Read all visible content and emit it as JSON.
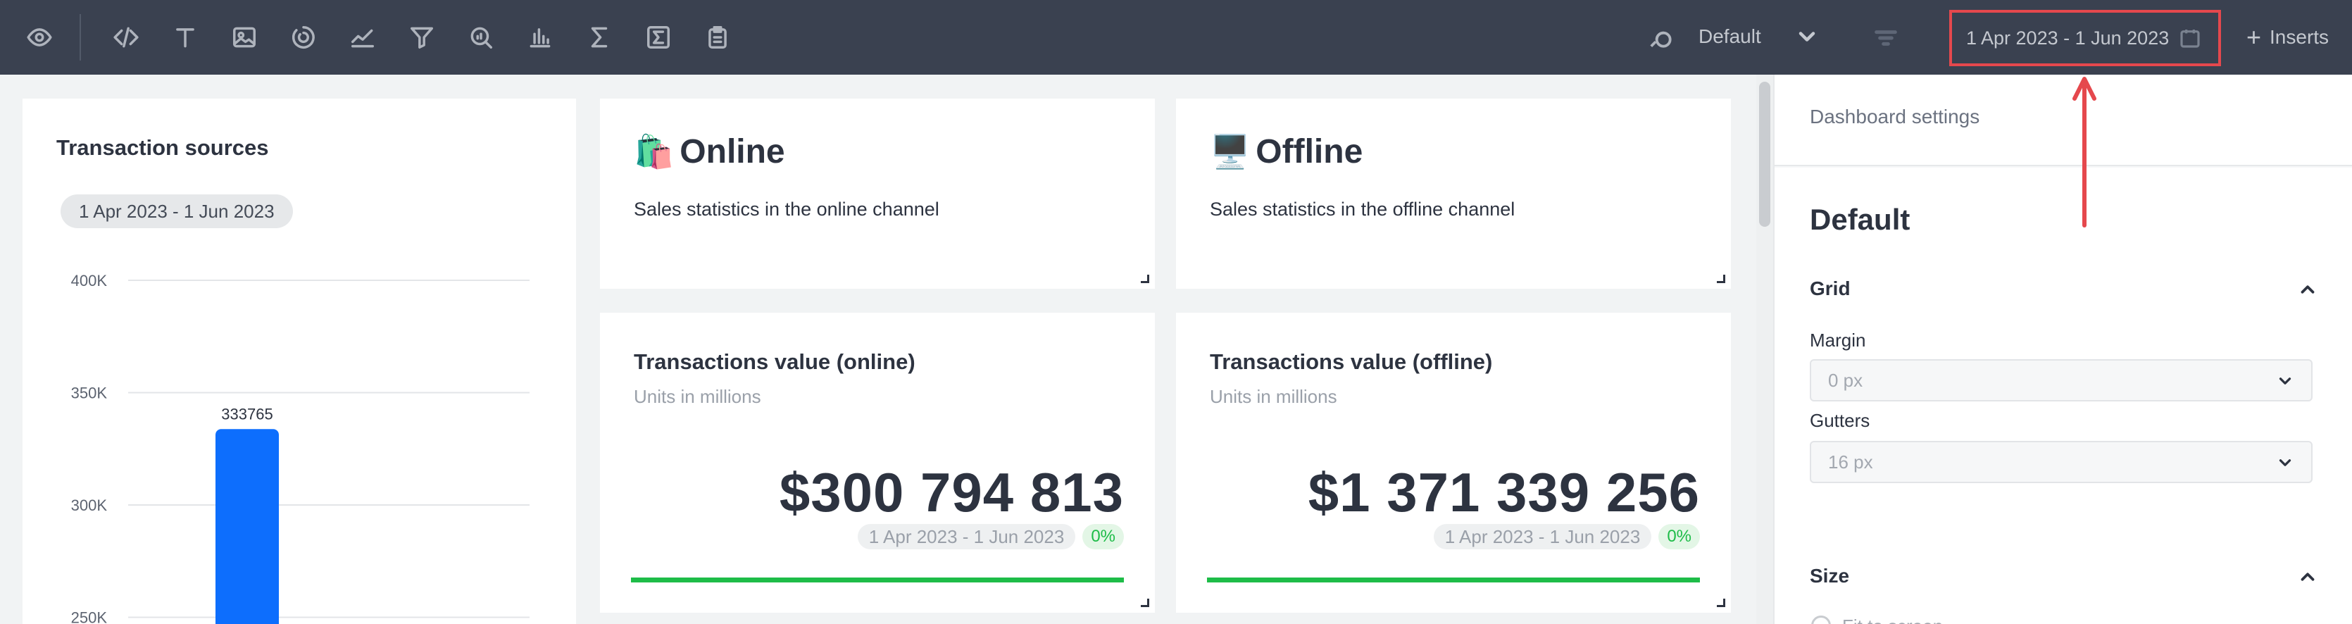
{
  "toolbar": {
    "icons": [
      "eye-icon",
      "code-icon",
      "text-icon",
      "image-icon",
      "gauge-icon",
      "line-chart-icon",
      "funnel-icon",
      "search-chart-icon",
      "bar-chart-icon",
      "sum-icon",
      "sum-box-icon",
      "clipboard-icon"
    ],
    "theme_label": "Default",
    "date_range": "1 Apr 2023 - 1 Jun 2023",
    "inserts_label": "Inserts"
  },
  "cards": {
    "transaction_sources": {
      "title": "Transaction sources",
      "date_pill": "1 Apr 2023 - 1 Jun 2023"
    },
    "online": {
      "emoji": "🛍️",
      "title": "Online",
      "subtitle": "Sales statistics in the online channel"
    },
    "offline": {
      "emoji": "🖥️",
      "title": "Offline",
      "subtitle": "Sales statistics in the offline channel"
    },
    "tv_online": {
      "title": "Transactions value (online)",
      "units": "Units in millions",
      "value": "$300 794 813",
      "date": "1 Apr 2023 - 1 Jun 2023",
      "change": "0%",
      "progress": 1.0
    },
    "tv_offline": {
      "title": "Transactions value (offline)",
      "units": "Units in millions",
      "value": "$1 371 339 256",
      "date": "1 Apr 2023 - 1 Jun 2023",
      "change": "0%",
      "progress": 1.0
    }
  },
  "chart_data": {
    "type": "bar",
    "title": "Transaction sources",
    "y_ticks": [
      "400K",
      "350K",
      "300K",
      "250K"
    ],
    "ylim": [
      237000,
      400000
    ],
    "values": [
      333765
    ],
    "data_labels": [
      "333765"
    ],
    "colors": [
      "#0d6efd"
    ]
  },
  "settings": {
    "header_label": "Dashboard settings",
    "theme_name": "Default",
    "grid_section": "Grid",
    "margin_label": "Margin",
    "margin_value": "0 px",
    "gutters_label": "Gutters",
    "gutters_value": "16 px",
    "size_section": "Size",
    "size_option": "Fit to screen"
  },
  "colors": {
    "toolbar_bg": "#3a4150",
    "accent_blue": "#0d6efd",
    "success_green": "#1ebc48",
    "highlight_red": "#e5484d"
  }
}
